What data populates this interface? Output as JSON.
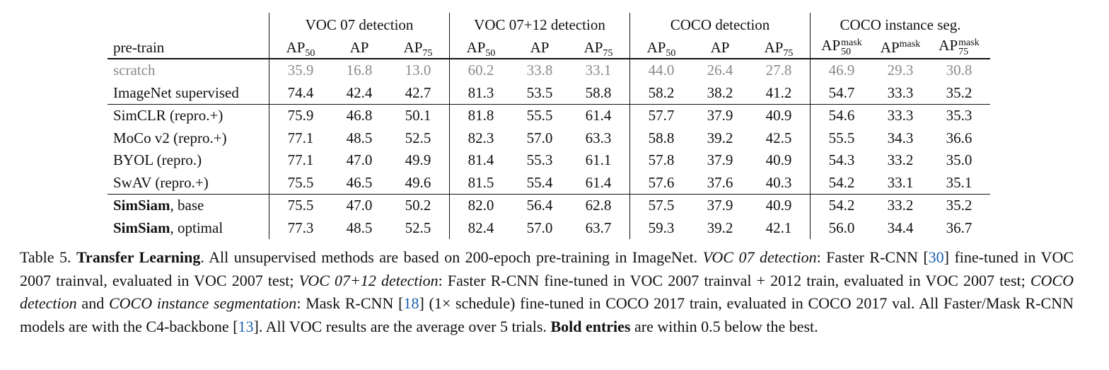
{
  "table": {
    "groups": [
      "VOC 07 detection",
      "VOC 07+12 detection",
      "COCO detection",
      "COCO instance seg."
    ],
    "pretrain_header": "pre-train",
    "sub": {
      "ap": "AP",
      "s50": "50",
      "s75": "75",
      "mask": "mask"
    },
    "rows": [
      {
        "name": "scratch",
        "vals": [
          "35.9",
          "16.8",
          "13.0",
          "60.2",
          "33.8",
          "33.1",
          "44.0",
          "26.4",
          "27.8",
          "46.9",
          "29.3",
          "30.8"
        ]
      },
      {
        "name": "ImageNet supervised",
        "vals": [
          "74.4",
          "42.4",
          "42.7",
          "81.3",
          "53.5",
          "58.8",
          "58.2",
          "38.2",
          "41.2",
          "54.7",
          "33.3",
          "35.2"
        ]
      },
      {
        "name": "SimCLR (repro.+)",
        "vals": [
          "75.9",
          "46.8",
          "50.1",
          "81.8",
          "55.5",
          "61.4",
          "57.7",
          "37.9",
          "40.9",
          "54.6",
          "33.3",
          "35.3"
        ]
      },
      {
        "name": "MoCo v2 (repro.+)",
        "vals": [
          "77.1",
          "48.5",
          "52.5",
          "82.3",
          "57.0",
          "63.3",
          "58.8",
          "39.2",
          "42.5",
          "55.5",
          "34.3",
          "36.6"
        ]
      },
      {
        "name": "BYOL (repro.)",
        "vals": [
          "77.1",
          "47.0",
          "49.9",
          "81.4",
          "55.3",
          "61.1",
          "57.8",
          "37.9",
          "40.9",
          "54.3",
          "33.2",
          "35.0"
        ]
      },
      {
        "name": "SwAV (repro.+)",
        "vals": [
          "75.5",
          "46.5",
          "49.6",
          "81.5",
          "55.4",
          "61.4",
          "57.6",
          "37.6",
          "40.3",
          "54.2",
          "33.1",
          "35.1"
        ]
      },
      {
        "name_bold": "SimSiam",
        "name_rest": ", base",
        "vals": [
          "75.5",
          "47.0",
          "50.2",
          "82.0",
          "56.4",
          "62.8",
          "57.5",
          "37.9",
          "40.9",
          "54.2",
          "33.2",
          "35.2"
        ]
      },
      {
        "name_bold": "SimSiam",
        "name_rest": ", optimal",
        "vals": [
          "77.3",
          "48.5",
          "52.5",
          "82.4",
          "57.0",
          "63.7",
          "59.3",
          "39.2",
          "42.1",
          "56.0",
          "34.4",
          "36.7"
        ]
      }
    ]
  },
  "caption": {
    "label": "Table 5.",
    "title": "Transfer Learning",
    "t1": ". All unsupervised methods are based on 200-epoch pre-training in ImageNet. ",
    "i1": "VOC 07 detection",
    "t2": ": Faster R-CNN [",
    "r30": "30",
    "t3": "] fine-tuned in VOC 2007 trainval, evaluated in VOC 2007 test; ",
    "i2": "VOC 07+12 detection",
    "t4": ": Faster R-CNN fine-tuned in VOC 2007 trainval + 2012 train, evaluated in VOC 2007 test; ",
    "i3": "COCO detection",
    "t5": " and ",
    "i4": "COCO instance segmentation",
    "t6": ": Mask R-CNN [",
    "r18": "18",
    "t7": "] (1× schedule) fine-tuned in COCO 2017 train, evaluated in COCO 2017 val. All Faster/Mask R-CNN models are with the C4-backbone [",
    "r13": "13",
    "t8": "]. All VOC results are the average over 5 trials. ",
    "bold": "Bold entries",
    "t9": " are within 0.5 below the best."
  }
}
